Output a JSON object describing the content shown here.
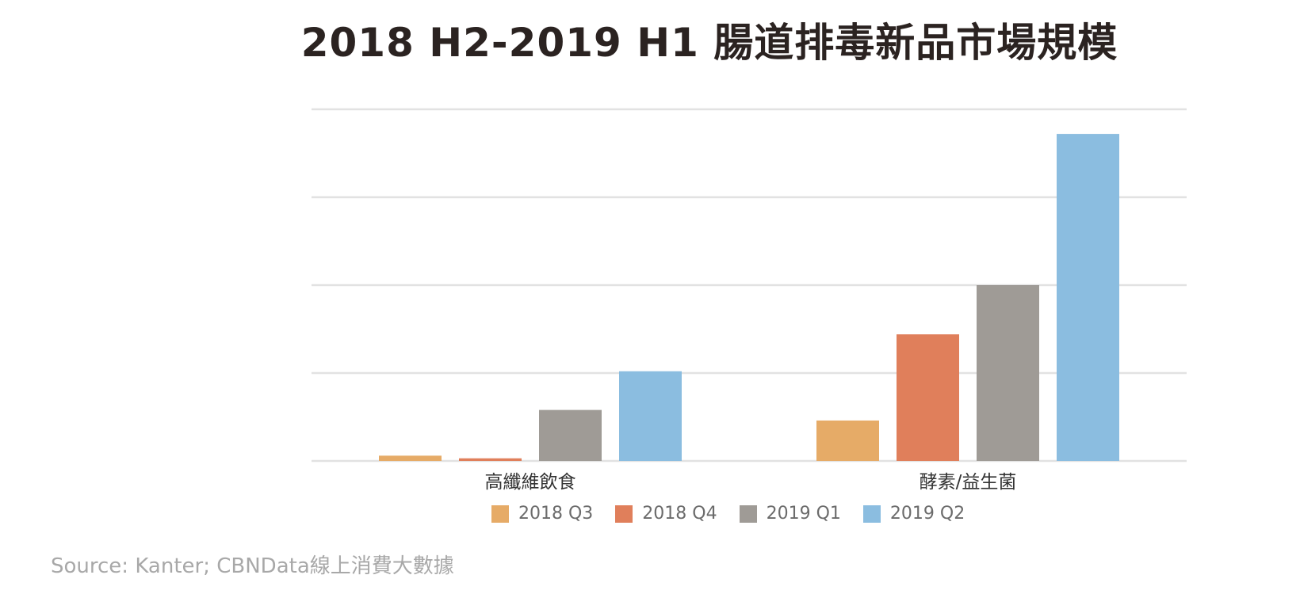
{
  "chart_data": {
    "type": "bar",
    "title": "2018 H2-2019 H1 腸道排毒新品市場規模",
    "categories": [
      "高纖維飲食",
      "酵素/益生菌"
    ],
    "series": [
      {
        "name": "2018 Q3",
        "color": "#e6ab67",
        "values": [
          0.3,
          2.3
        ]
      },
      {
        "name": "2018 Q4",
        "color": "#e07f5b",
        "values": [
          0.15,
          7.2
        ]
      },
      {
        "name": "2019 Q1",
        "color": "#9f9b96",
        "values": [
          2.9,
          10.0
        ]
      },
      {
        "name": "2019 Q2",
        "color": "#8bbde0",
        "values": [
          5.1,
          18.6
        ]
      }
    ],
    "ylim": [
      0,
      20
    ],
    "yticks": [
      0,
      5,
      10,
      15,
      20
    ],
    "grid": true,
    "legend": "bottom",
    "xlabel": "",
    "ylabel": ""
  },
  "source": "Source: Kanter; CBNData線上消費大數據"
}
